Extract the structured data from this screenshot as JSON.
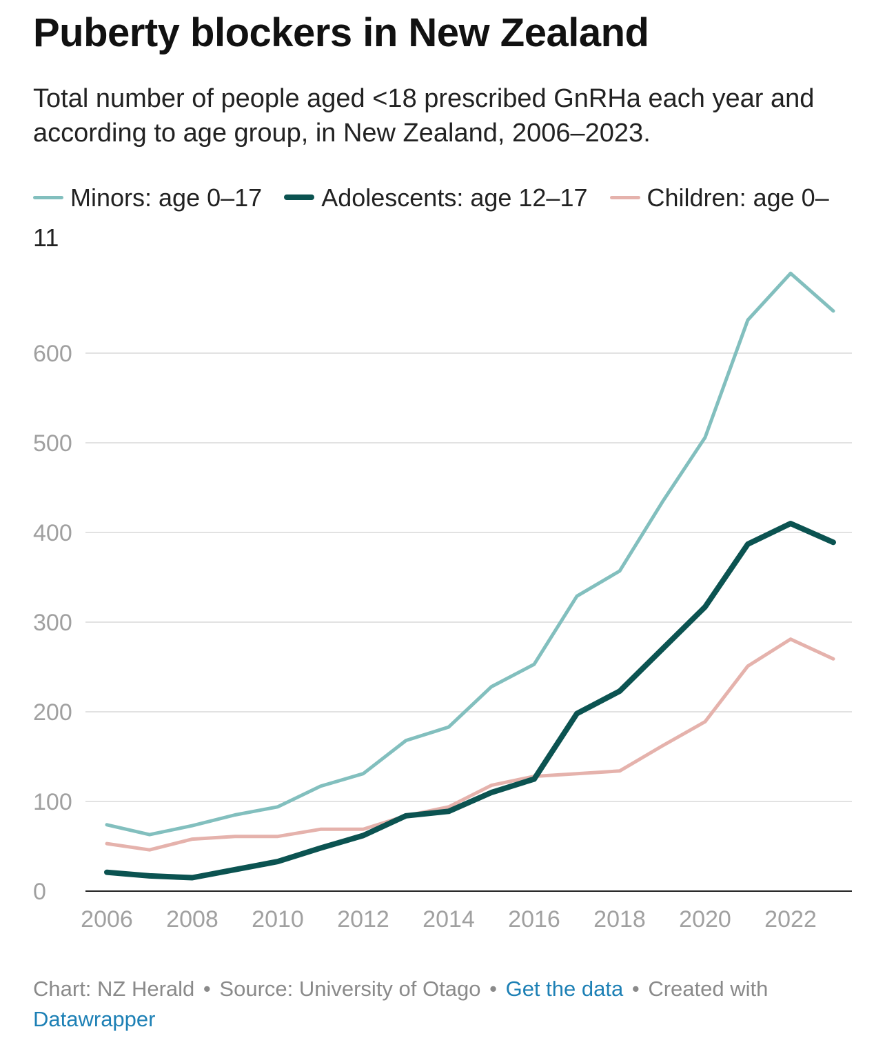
{
  "title": "Puberty blockers in New Zealand",
  "subtitle": "Total number of people aged <18 prescribed GnRHa each year and according to age group, in New Zealand, 2006–2023.",
  "colors": {
    "minors": "#82bfbe",
    "adolescents": "#0b5351",
    "children": "#e5b2ac",
    "gridline": "#e2e2e2",
    "axis": "#222222"
  },
  "footer": {
    "chart_credit": "Chart: NZ Herald",
    "separator": "•",
    "source": "Source: University of Otago",
    "data_link": "Get the data",
    "created_with": "Created with",
    "tool_link": "Datawrapper"
  },
  "chart_data": {
    "type": "line",
    "title": "Puberty blockers in New Zealand",
    "xlabel": "",
    "ylabel": "",
    "xlim": [
      2006,
      2023
    ],
    "ylim": [
      0,
      700
    ],
    "yticks": [
      0,
      100,
      200,
      300,
      400,
      500,
      600
    ],
    "xticks": [
      2006,
      2008,
      2010,
      2012,
      2014,
      2016,
      2018,
      2020,
      2022
    ],
    "grid": true,
    "legend_position": "top",
    "x": [
      2006,
      2007,
      2008,
      2009,
      2010,
      2011,
      2012,
      2013,
      2014,
      2015,
      2016,
      2017,
      2018,
      2019,
      2020,
      2021,
      2022,
      2023
    ],
    "series": [
      {
        "key": "minors",
        "name": "Minors: age 0–17",
        "color": "#82bfbe",
        "values": [
          74,
          63,
          73,
          85,
          94,
          117,
          131,
          168,
          183,
          228,
          253,
          329,
          357,
          434,
          506,
          637,
          689,
          647
        ]
      },
      {
        "key": "adolescents",
        "name": "Adolescents: age 12–17",
        "color": "#0b5351",
        "values": [
          21,
          17,
          15,
          24,
          33,
          48,
          62,
          84,
          89,
          110,
          125,
          198,
          223,
          270,
          317,
          387,
          410,
          389
        ]
      },
      {
        "key": "children",
        "name": "Children: age 0–11",
        "color": "#e5b2ac",
        "values": [
          53,
          46,
          58,
          61,
          61,
          69,
          69,
          84,
          94,
          118,
          128,
          131,
          134,
          162,
          189,
          251,
          281,
          259
        ]
      }
    ]
  }
}
